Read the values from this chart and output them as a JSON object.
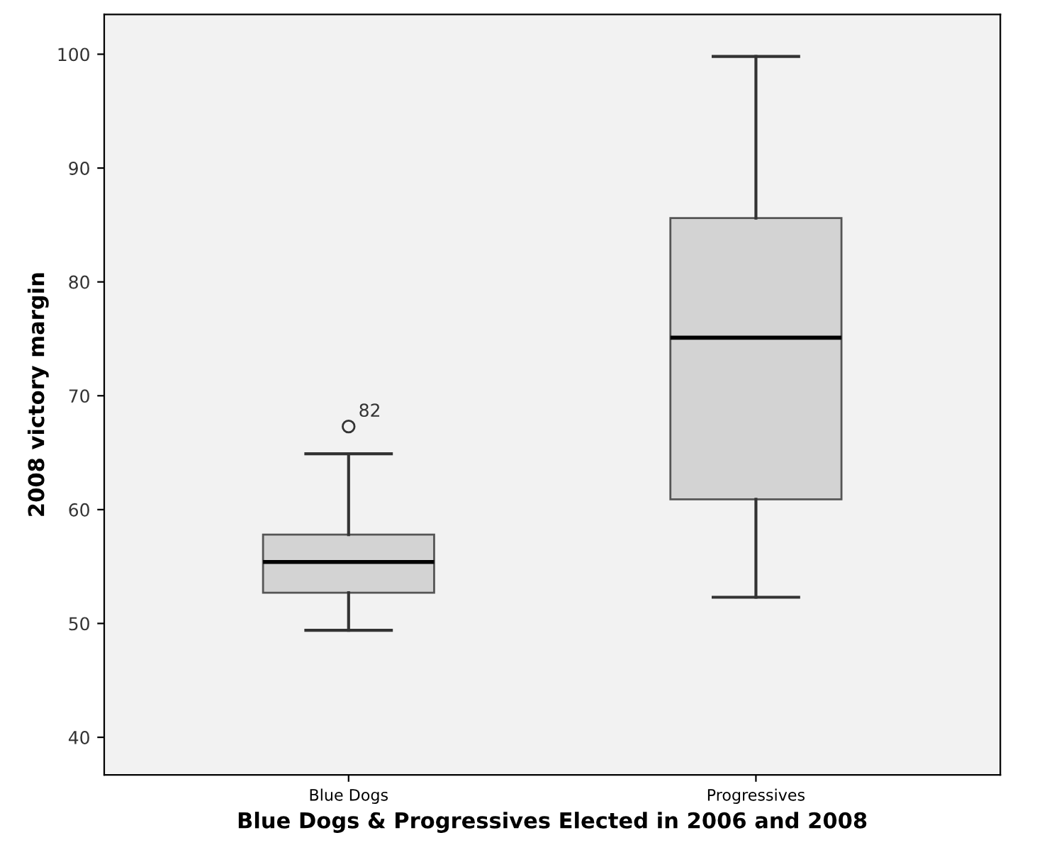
{
  "chart_data": {
    "type": "box",
    "xlabel": "Blue Dogs & Progressives Elected in 2006 and 2008",
    "ylabel": "2008 victory margin",
    "categories": [
      "Blue Dogs",
      "Progressives"
    ],
    "color": "#d3d3d3",
    "boxes": [
      {
        "low": 49.4,
        "q1": 52.7,
        "median": 55.4,
        "q3": 57.8,
        "high": 64.9,
        "outliers": [
          67.3
        ]
      },
      {
        "low": 52.3,
        "q1": 60.9,
        "median": 75.1,
        "q3": 85.6,
        "high": 99.8
      }
    ],
    "annotations": [
      "82"
    ],
    "ylim": [
      36.7,
      103.5
    ],
    "yticks": [
      40,
      50,
      60,
      70,
      80,
      90,
      100
    ],
    "grid": false
  }
}
